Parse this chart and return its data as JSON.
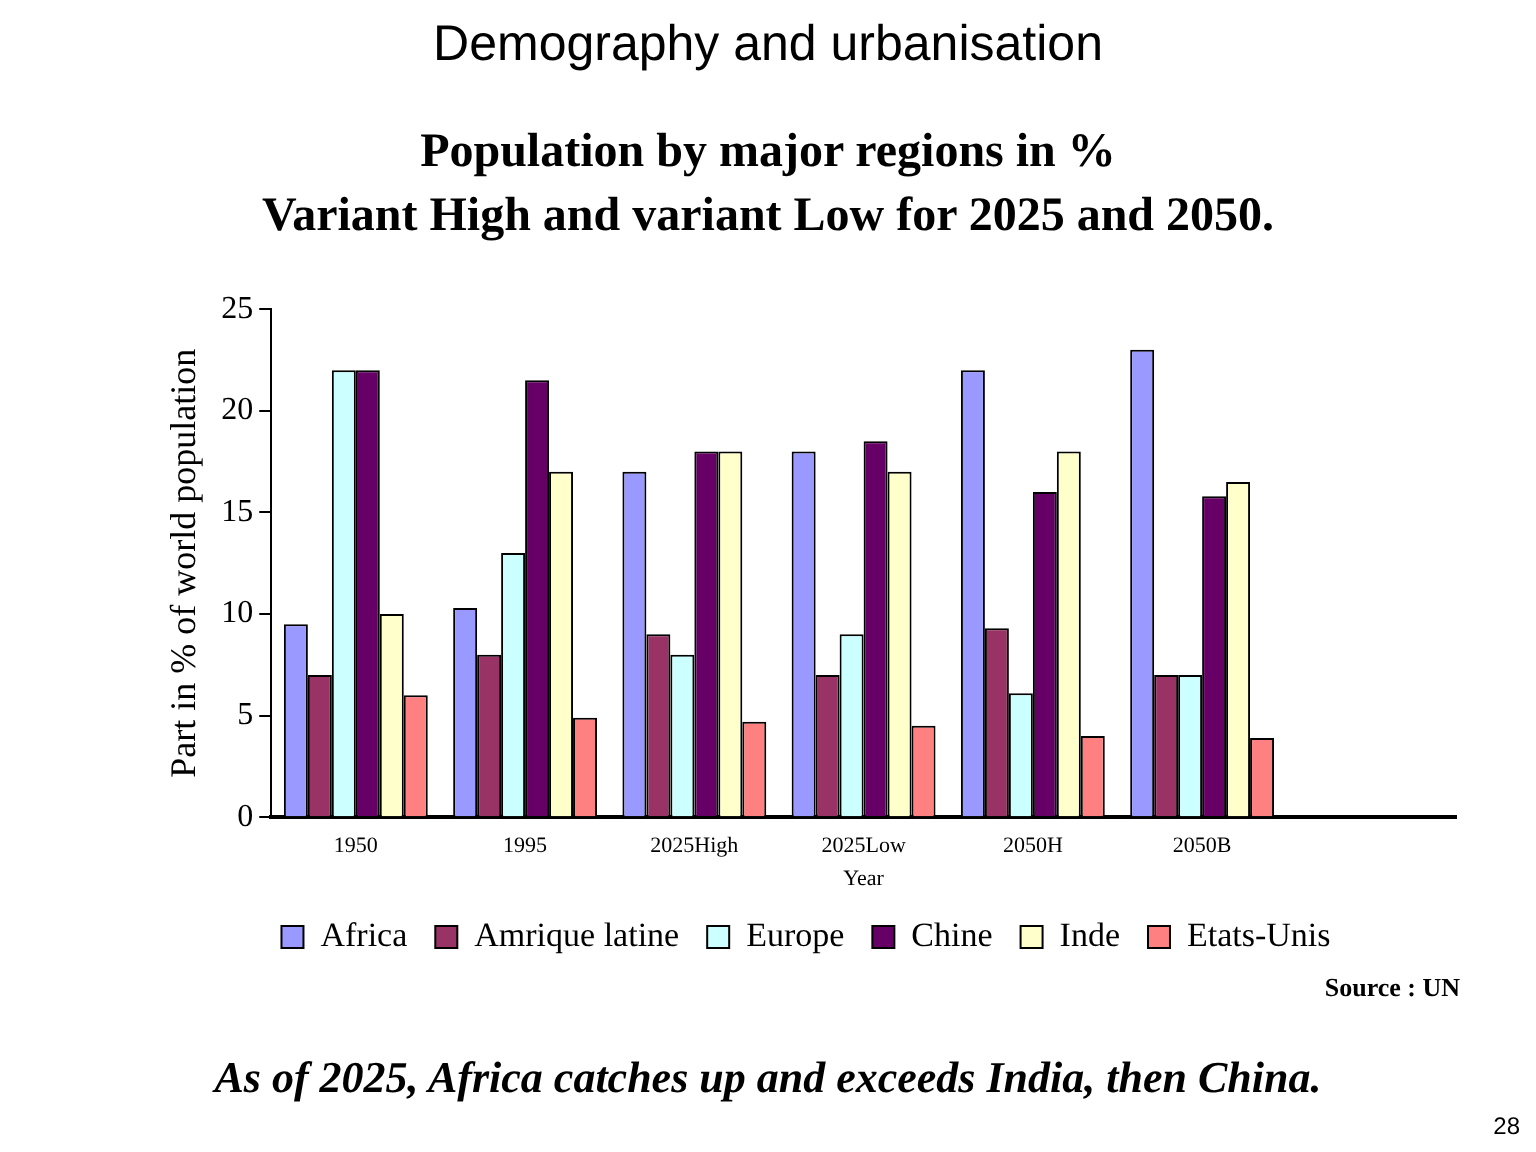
{
  "chart_data": {
    "type": "bar",
    "title": "Demography and urbanisation",
    "subtitle": "Population by  major regions in %\nVariant High and variant Low for 2025 and 2050.",
    "xlabel": "Year",
    "ylabel": "Part in % of world population",
    "categories": [
      "1950",
      "1995",
      "2025High",
      "2025Low",
      "2050H",
      "2050B",
      null
    ],
    "series": [
      {
        "name": "Africa",
        "color": "#9999ff",
        "values": [
          9.5,
          10.3,
          17,
          18,
          22,
          23,
          null
        ]
      },
      {
        "name": "Amrique latine",
        "color": "#993366",
        "values": [
          7,
          8,
          9,
          7,
          9.3,
          7,
          null
        ]
      },
      {
        "name": "Europe",
        "color": "#ccffff",
        "values": [
          22,
          13,
          8,
          9,
          6.1,
          7,
          null
        ]
      },
      {
        "name": "Chine",
        "color": "#660066",
        "values": [
          22,
          21.5,
          18,
          18.5,
          16,
          15.8,
          null
        ]
      },
      {
        "name": "Inde",
        "color": "#ffffcc",
        "values": [
          10,
          17,
          18,
          17,
          18,
          16.5,
          null
        ]
      },
      {
        "name": "Etats-Unis",
        "color": "#ff8080",
        "values": [
          6,
          4.9,
          4.7,
          4.5,
          4,
          3.9,
          null
        ]
      }
    ],
    "ylim": [
      0,
      25
    ],
    "yticks": [
      0,
      5,
      10,
      15,
      20,
      25
    ],
    "grid": false,
    "legend": "bottom",
    "annotations": [
      "Source : UN",
      "As of 2025, Africa catches up and exceeds India, then China.",
      "28"
    ]
  }
}
